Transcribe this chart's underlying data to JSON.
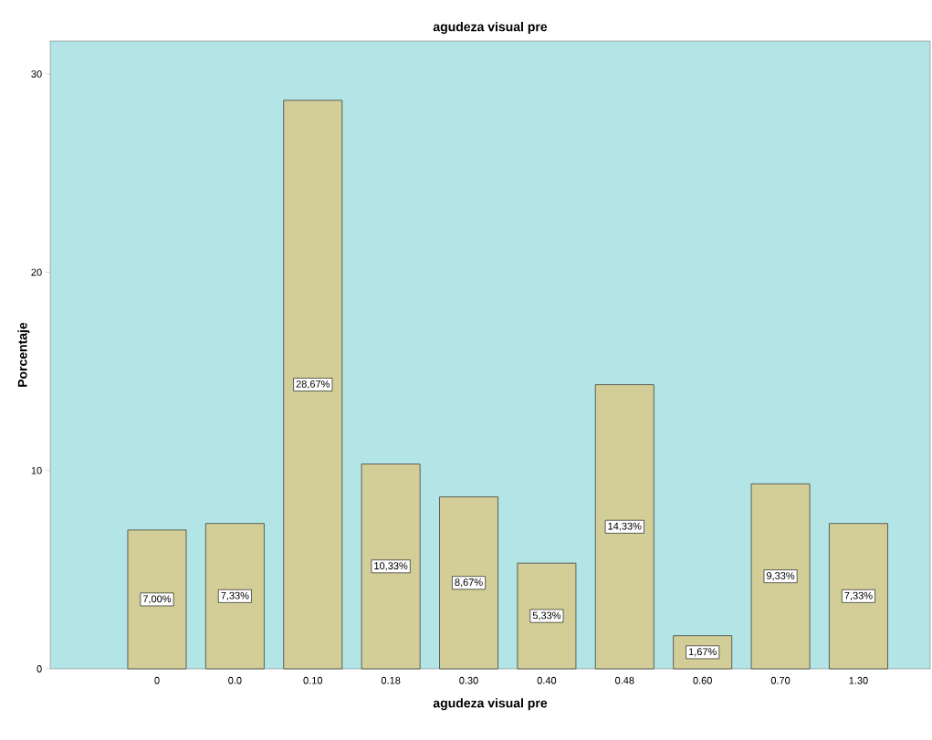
{
  "chart_data": {
    "type": "bar",
    "title": "agudeza visual pre",
    "xlabel": "agudeza visual pre",
    "ylabel": "Porcentaje",
    "categories": [
      "0",
      "0.0",
      "0.10",
      "0.18",
      "0.30",
      "0.40",
      "0.48",
      "0.60",
      "0.70",
      "1.30"
    ],
    "values": [
      7.0,
      7.33,
      28.67,
      10.33,
      8.67,
      5.33,
      14.33,
      1.67,
      9.33,
      7.33
    ],
    "value_labels": [
      "7,00%",
      "7,33%",
      "28,67%",
      "10,33%",
      "8,67%",
      "5,33%",
      "14,33%",
      "1,67%",
      "9,33%",
      "7,33%"
    ],
    "color": "#d3ce97",
    "ylim": [
      0,
      31.66
    ],
    "yticks": [
      0,
      10,
      20,
      30
    ]
  }
}
